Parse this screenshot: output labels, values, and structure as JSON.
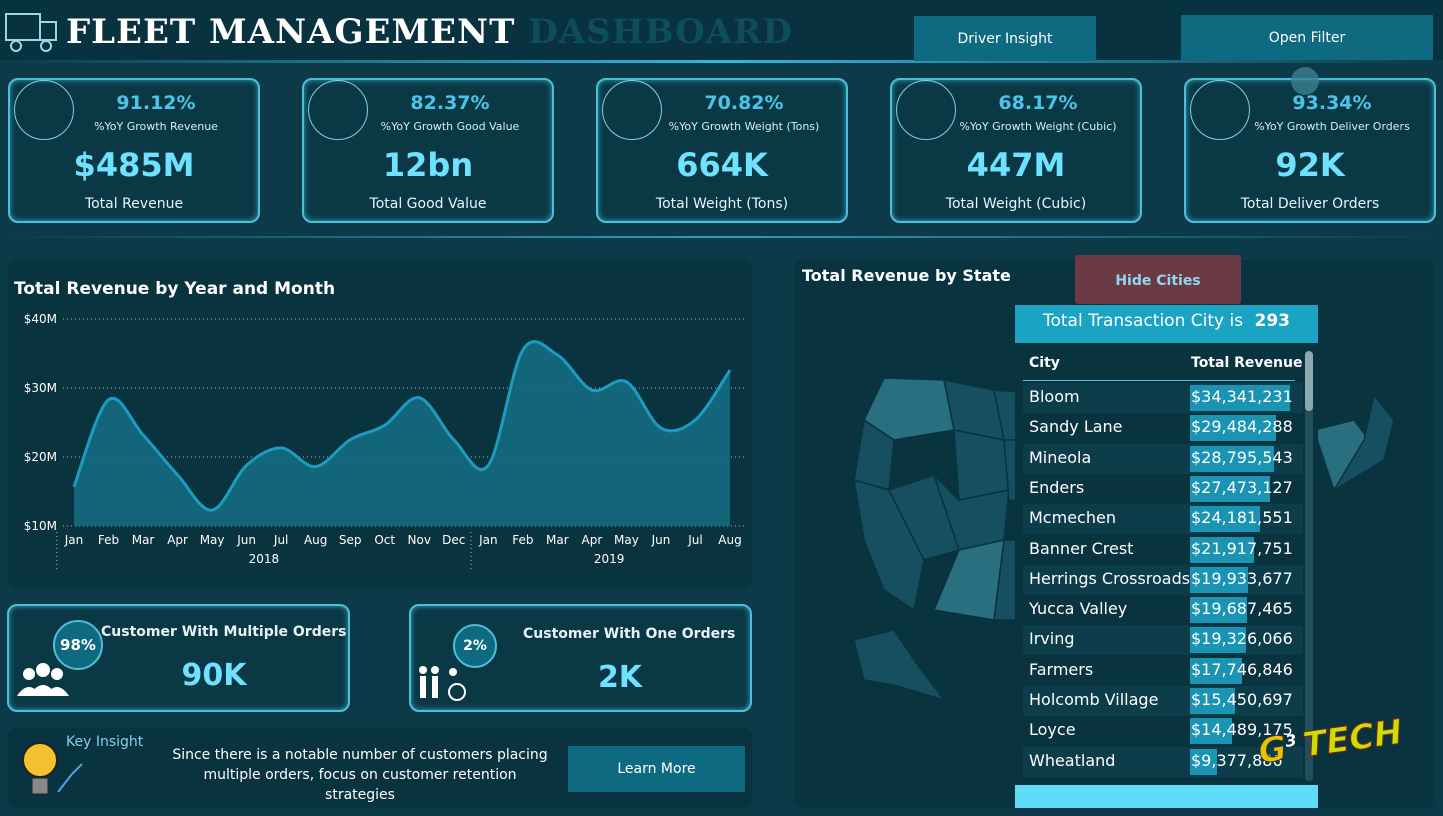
{
  "header": {
    "title_main": "FLEET MANAGEMENT",
    "title_accent": "DASHBOARD",
    "buttons": [
      "Driver Insight",
      "Open Filter"
    ]
  },
  "kpis": [
    {
      "growth": "91.12%",
      "growth_label": "%YoY Growth Revenue",
      "value": "$485M",
      "label": "Total Revenue"
    },
    {
      "growth": "82.37%",
      "growth_label": "%YoY Growth Good Value",
      "value": "12bn",
      "label": "Total Good Value"
    },
    {
      "growth": "70.82%",
      "growth_label": "%YoY Growth Weight (Tons)",
      "value": "664K",
      "label": "Total Weight (Tons)"
    },
    {
      "growth": "68.17%",
      "growth_label": "%YoY Growth Weight (Cubic)",
      "value": "447M",
      "label": "Total Weight (Cubic)"
    },
    {
      "growth": "93.34%",
      "growth_label": "%YoY Growth Deliver Orders",
      "value": "92K",
      "label": "Total Deliver Orders"
    }
  ],
  "chart_data": {
    "type": "area",
    "title": "Total Revenue by Year and Month",
    "categories": [
      "Jan",
      "Feb",
      "Mar",
      "Apr",
      "May",
      "Jun",
      "Jul",
      "Aug",
      "Sep",
      "Oct",
      "Nov",
      "Dec",
      "Jan",
      "Feb",
      "Mar",
      "Apr",
      "May",
      "Jun",
      "Jul",
      "Aug"
    ],
    "year_labels": [
      "2018",
      "2019"
    ],
    "values": [
      15.7,
      28.3,
      23.2,
      17.4,
      12.3,
      18.8,
      21.3,
      18.6,
      22.5,
      24.6,
      28.6,
      22.5,
      18.8,
      35.5,
      34.8,
      29.7,
      30.9,
      24.2,
      25.4,
      32.6
    ],
    "color": "#1b9cc0",
    "ylim": [
      10,
      40
    ],
    "yticks": [
      {
        "value": 10,
        "label": "$10M"
      },
      {
        "value": 20,
        "label": "$20M"
      },
      {
        "value": 30,
        "label": "$30M"
      },
      {
        "value": 40,
        "label": "$40M"
      }
    ],
    "grid": true
  },
  "customer_cards": [
    {
      "share": "98%",
      "title": "Customer With Multiple Orders",
      "value": "90K"
    },
    {
      "share": "2%",
      "title": "Customer With One Orders",
      "value": "2K"
    }
  ],
  "insight": {
    "heading": "Key Insight",
    "text": "Since there is a notable number of customers placing multiple orders, focus on customer retention strategies",
    "button": "Learn More"
  },
  "map": {
    "title": "Total Revenue by State",
    "button": "Hide Cities"
  },
  "city_table": {
    "banner": "Total Transaction City is",
    "count": "293",
    "columns": [
      "City",
      "Total Revenue"
    ],
    "cities": [
      "Bloom",
      "Sandy Lane",
      "Mineola",
      "Enders",
      "Mcmechen",
      "Banner Crest",
      "Herrings Crossroads",
      "Yucca Valley",
      "Irving",
      "Farmers",
      "Holcomb Village",
      "Loyce",
      "Wheatland"
    ],
    "values": [
      34341231,
      29484288,
      28795543,
      27473127,
      24181551,
      21917751,
      19933677,
      19687465,
      19326066,
      17746846,
      15450697,
      14489175,
      9377886
    ],
    "value_labels": [
      "$34,341,231",
      "$29,484,288",
      "$28,795,543",
      "$27,473,127",
      "$24,181,551",
      "$21,917,751",
      "$19,933,677",
      "$19,687,465",
      "$19,326,066",
      "$17,746,846",
      "$15,450,697",
      "$14,489,175",
      "$9,377,886"
    ]
  },
  "logo": {
    "letter": "G",
    "sup": "3",
    "word": "TECH"
  }
}
